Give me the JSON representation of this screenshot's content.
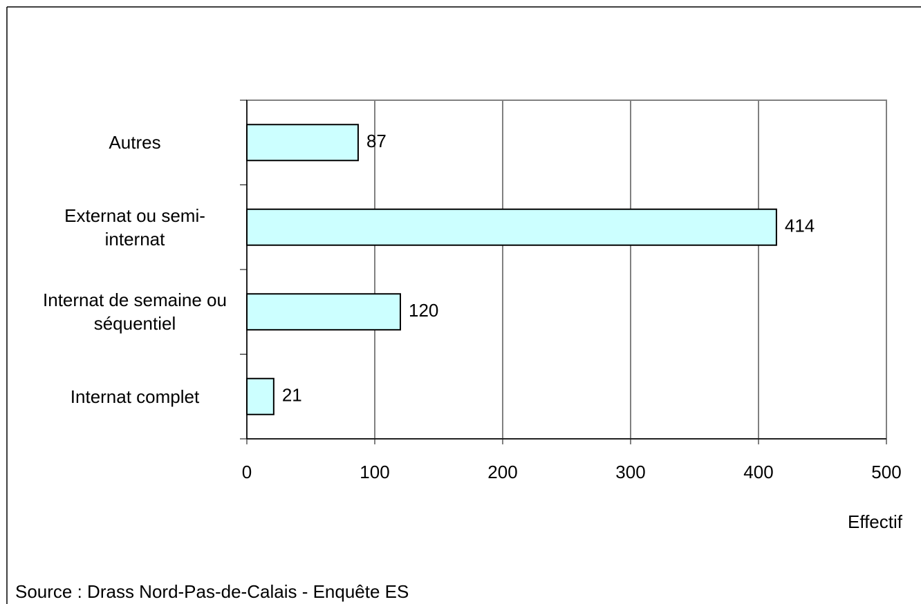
{
  "chart_data": {
    "type": "bar",
    "orientation": "horizontal",
    "categories": [
      "Autres",
      "Externat ou semi-internat",
      "Internat de semaine ou séquentiel",
      "Internat complet"
    ],
    "values": [
      87,
      414,
      120,
      21
    ],
    "color": "#ccffff",
    "xlim": [
      0,
      500
    ],
    "xticks": [
      0,
      100,
      200,
      300,
      400,
      500
    ],
    "x_label": "Effectif",
    "source": "Source : Drass Nord-Pas-de-Calais - Enquête ES",
    "grid": true
  }
}
